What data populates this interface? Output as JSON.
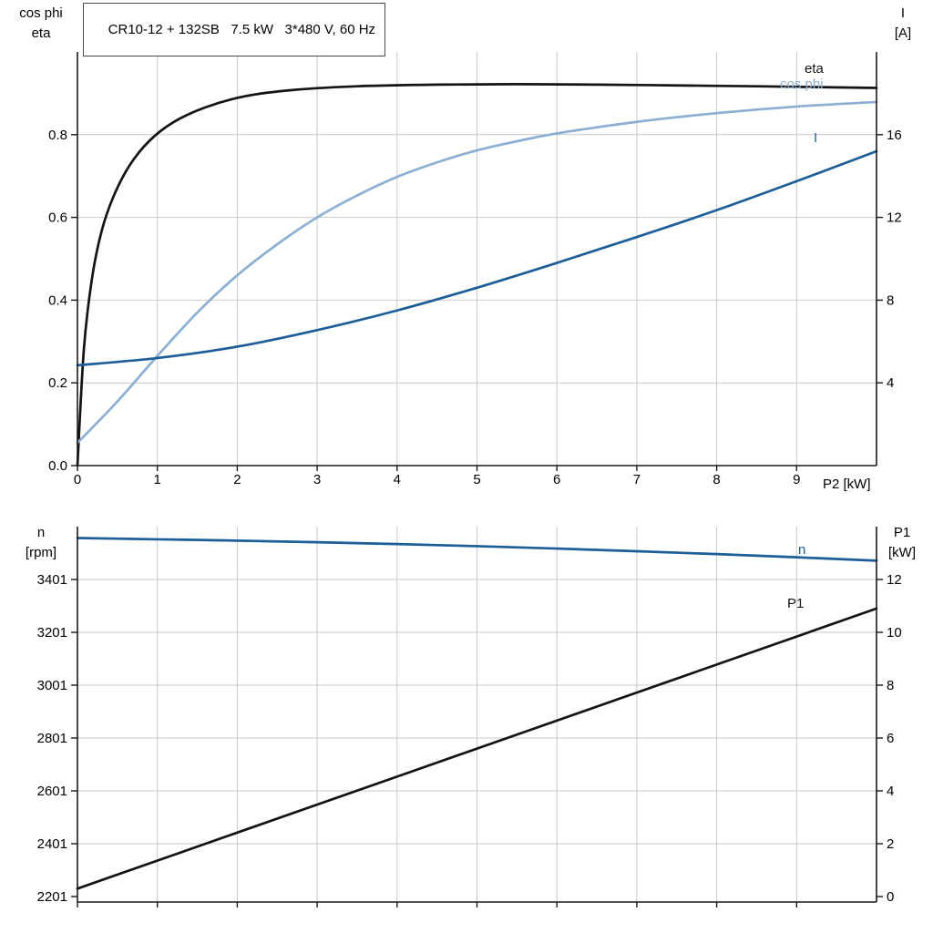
{
  "title_box": {
    "text": "CR10-12 + 132SB   7.5 kW   3*480 V, 60 Hz"
  },
  "colors": {
    "black": "#141414",
    "dark_blue": "#1d5e98",
    "light_blue": "#8cafd2",
    "grid": "#c9c9c9",
    "axis": "#1a1a1a"
  },
  "chart_data": [
    {
      "type": "line",
      "title": "CR10-12 + 132SB   7.5 kW   3*480 V, 60 Hz",
      "x_axis": {
        "label": "P2 [kW]",
        "min": 0,
        "max": 10,
        "tick_values": [
          0,
          1,
          2,
          3,
          4,
          5,
          6,
          7,
          8,
          9
        ],
        "tick_labels": [
          "0",
          "1",
          "2",
          "3",
          "4",
          "5",
          "6",
          "7",
          "8",
          "9"
        ]
      },
      "left_axis": {
        "title_lines": [
          "cos phi",
          "eta"
        ],
        "min": 0,
        "max": 1.0,
        "tick_values": [
          0,
          0.2,
          0.4,
          0.6,
          0.8
        ],
        "tick_labels": [
          "0.0",
          "0.2",
          "0.4",
          "0.6",
          "0.8"
        ]
      },
      "right_axis": {
        "title_lines": [
          "I",
          "[A]"
        ],
        "min": 0,
        "max": 20,
        "tick_values": [
          4,
          8,
          12,
          16
        ],
        "tick_labels": [
          "4",
          "8",
          "12",
          "16"
        ]
      },
      "grid": true,
      "legend_position": "curve-end-labels",
      "series": [
        {
          "name": "eta",
          "label": "eta",
          "axis": "left",
          "color": "black",
          "x": [
            0,
            0.08,
            0.18,
            0.3,
            0.45,
            0.65,
            0.9,
            1.2,
            1.6,
            2.1,
            2.7,
            3.5,
            4.5,
            5.5,
            6.5,
            7.5,
            8.5,
            10
          ],
          "y": [
            0,
            0.28,
            0.45,
            0.565,
            0.65,
            0.725,
            0.785,
            0.83,
            0.866,
            0.893,
            0.908,
            0.917,
            0.921,
            0.922,
            0.921,
            0.919,
            0.917,
            0.913
          ]
        },
        {
          "name": "cos phi",
          "label": "cos phi",
          "axis": "left",
          "color": "light_blue",
          "x": [
            0,
            0.5,
            1,
            1.5,
            2,
            2.5,
            3,
            3.5,
            4,
            4.5,
            5,
            5.5,
            6,
            7,
            8,
            9,
            10
          ],
          "y": [
            0.055,
            0.155,
            0.265,
            0.37,
            0.46,
            0.535,
            0.6,
            0.653,
            0.698,
            0.733,
            0.762,
            0.784,
            0.803,
            0.831,
            0.852,
            0.868,
            0.879
          ]
        },
        {
          "name": "I",
          "label": "I",
          "axis": "right",
          "color": "dark_blue",
          "x": [
            0,
            1,
            2,
            3,
            4,
            5,
            6,
            7,
            8,
            9,
            10
          ],
          "y": [
            4.85,
            5.2,
            5.75,
            6.55,
            7.5,
            8.6,
            9.8,
            11.05,
            12.35,
            13.75,
            15.2
          ]
        }
      ]
    },
    {
      "type": "line",
      "title": "",
      "x_axis": {
        "label": "",
        "min": 0,
        "max": 10,
        "tick_values": [
          0,
          1,
          2,
          3,
          4,
          5,
          6,
          7,
          8,
          9
        ],
        "tick_labels": []
      },
      "left_axis": {
        "title_lines": [
          "n",
          "[rpm]"
        ],
        "min": 2201,
        "max": 3601,
        "tick_values": [
          2201,
          2401,
          2601,
          2801,
          3001,
          3201,
          3401
        ],
        "tick_labels": [
          "2201",
          "2401",
          "2601",
          "2801",
          "3001",
          "3201",
          "3401"
        ]
      },
      "right_axis": {
        "title_lines": [
          "P1",
          "[kW]"
        ],
        "min": 0,
        "max": 14,
        "tick_values": [
          0,
          2,
          4,
          6,
          8,
          10,
          12
        ],
        "tick_labels": [
          "0",
          "2",
          "4",
          "6",
          "8",
          "10",
          "12"
        ]
      },
      "grid": true,
      "legend_position": "curve-end-labels",
      "series": [
        {
          "name": "n",
          "label": "n",
          "axis": "left",
          "color": "dark_blue",
          "x": [
            0,
            1,
            2,
            3,
            4,
            5,
            6,
            7,
            8,
            9,
            10
          ],
          "y": [
            3558,
            3553,
            3548,
            3542,
            3535,
            3527,
            3518,
            3508,
            3497,
            3485,
            3472
          ]
        },
        {
          "name": "P1",
          "label": "P1",
          "axis": "right",
          "color": "black",
          "x": [
            0,
            2,
            4,
            6,
            8,
            10
          ],
          "y": [
            0.3,
            2.42,
            4.54,
            6.66,
            8.78,
            10.9
          ]
        }
      ]
    }
  ]
}
